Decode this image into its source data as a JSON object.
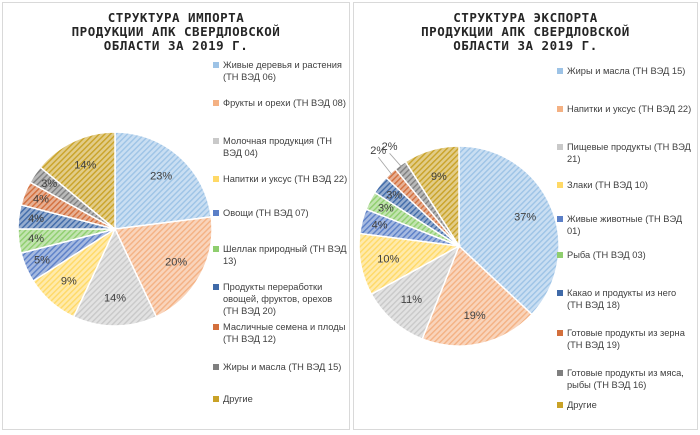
{
  "chart_data": [
    {
      "type": "pie",
      "title_lines": [
        "СТРУКТУРА ИМПОРТА",
        "ПРОДУКЦИИ АПК СВЕРДЛОВСКОЙ",
        "ОБЛАСТИ ЗА 2019 Г."
      ],
      "unit": "%",
      "slices": [
        {
          "label": "Живые деревья и растения (ТН ВЭД 06)",
          "value": 23,
          "value_label": "23%",
          "color": "#9dc3e6"
        },
        {
          "label": "Фрукты и орехи (ТН ВЭД 08)",
          "value": 20,
          "value_label": "20%",
          "color": "#f4b183"
        },
        {
          "label": "Молочная продукция (ТН ВЭД 04)",
          "value": 14,
          "value_label": "14%",
          "color": "#c9c9c9"
        },
        {
          "label": "Напитки и уксус (ТН ВЭД 22)",
          "value": 9,
          "value_label": "9%",
          "color": "#ffd966"
        },
        {
          "label": "Овощи (ТН ВЭД 07)",
          "value": 5,
          "value_label": "5%",
          "color": "#5b7fc7"
        },
        {
          "label": "Шеллак природный (ТН ВЭД 13)",
          "value": 4,
          "value_label": "4%",
          "color": "#8fce6e"
        },
        {
          "label": "Продукты переработки овощей, фруктов, орехов (ТН ВЭД 20)",
          "value": 4,
          "value_label": "4%",
          "color": "#3f6aa8"
        },
        {
          "label": "Масличные семена и плоды (ТН ВЭД 12)",
          "value": 4,
          "value_label": "4%",
          "color": "#d36f3c"
        },
        {
          "label": "Жиры и масла (ТН ВЭД 15)",
          "value": 3,
          "value_label": "3%",
          "color": "#7f7f7f"
        },
        {
          "label": "Другие",
          "value": 14,
          "value_label": "14%",
          "color": "#c9a227"
        }
      ]
    },
    {
      "type": "pie",
      "title_lines": [
        "СТРУКТУРА ЭКСПОРТА",
        "ПРОДУКЦИИ АПК СВЕРДЛОВСКОЙ",
        "ОБЛАСТИ ЗА 2019 Г."
      ],
      "unit": "%",
      "slices": [
        {
          "label": "Жиры и масла (ТН ВЭД 15)",
          "value": 37,
          "value_label": "37%",
          "color": "#9dc3e6"
        },
        {
          "label": "Напитки и уксус (ТН ВЭД 22)",
          "value": 19,
          "value_label": "19%",
          "color": "#f4b183"
        },
        {
          "label": "Пищевые продукты (ТН ВЭД 21)",
          "value": 11,
          "value_label": "11%",
          "color": "#c9c9c9"
        },
        {
          "label": "Злаки (ТН ВЭД 10)",
          "value": 10,
          "value_label": "10%",
          "color": "#ffd966"
        },
        {
          "label": "Живые животные (ТН ВЭД 01)",
          "value": 4,
          "value_label": "4%",
          "color": "#5b7fc7"
        },
        {
          "label": "Рыба (ТН ВЭД 03)",
          "value": 3,
          "value_label": "3%",
          "color": "#8fce6e"
        },
        {
          "label": "Какао и продукты из него (ТН ВЭД 18)",
          "value": 3,
          "value_label": "3%",
          "color": "#3f6aa8"
        },
        {
          "label": "Готовые продукты из зерна (ТН ВЭД 19)",
          "value": 2,
          "value_label": "2%",
          "color": "#d36f3c"
        },
        {
          "label": "Готовые продукты из мяса, рыбы (ТН ВЭД 16)",
          "value": 2,
          "value_label": "2%",
          "color": "#7f7f7f"
        },
        {
          "label": "Другие",
          "value": 9,
          "value_label": "9%",
          "color": "#c9a227"
        }
      ]
    }
  ]
}
